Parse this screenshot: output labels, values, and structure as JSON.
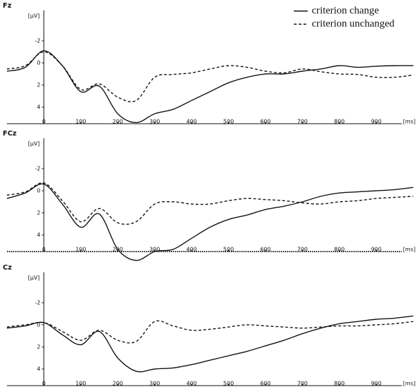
{
  "chart_data": [
    {
      "type": "line",
      "title": "Fz",
      "y_label": "[µV]",
      "x_label": "[ms]",
      "x": [
        -100,
        -50,
        0,
        50,
        100,
        150,
        200,
        250,
        300,
        350,
        400,
        450,
        500,
        550,
        600,
        650,
        700,
        750,
        800,
        850,
        900,
        950,
        1000
      ],
      "xlim": [
        -100,
        1010
      ],
      "xticks": [
        0,
        100,
        200,
        300,
        400,
        500,
        600,
        700,
        800,
        900
      ],
      "ylim": [
        -4.5,
        5.5
      ],
      "yticks": [
        -2,
        0,
        2,
        4
      ],
      "y_inverted": true,
      "legend": "upper right",
      "series": [
        {
          "name": "criterion change",
          "color": "#111111",
          "dash": false,
          "values": [
            0.75,
            0.4,
            -1.1,
            0.25,
            2.6,
            2.1,
            4.6,
            5.4,
            4.6,
            4.2,
            3.4,
            2.6,
            1.8,
            1.3,
            1.0,
            1.0,
            0.75,
            0.55,
            0.25,
            0.4,
            0.3,
            0.25,
            0.25
          ]
        },
        {
          "name": "criterion unchanged",
          "color": "#111111",
          "dash": true,
          "values": [
            0.55,
            0.25,
            -1,
            0.25,
            2.4,
            1.9,
            3.1,
            3.4,
            1.3,
            1.05,
            0.9,
            0.55,
            0.25,
            0.4,
            0.75,
            0.9,
            0.55,
            0.8,
            1.0,
            1.05,
            1.3,
            1.3,
            1.1
          ]
        }
      ]
    },
    {
      "type": "line",
      "title": "FCz",
      "y_label": "[µV]",
      "x_label": "[ms]",
      "x": [
        -100,
        -50,
        0,
        50,
        100,
        150,
        200,
        250,
        300,
        350,
        400,
        450,
        500,
        550,
        600,
        650,
        700,
        750,
        800,
        850,
        900,
        950,
        1000
      ],
      "xlim": [
        -100,
        1010
      ],
      "xticks": [
        0,
        100,
        200,
        300,
        400,
        500,
        600,
        700,
        800,
        900
      ],
      "ylim": [
        -4.5,
        5.5
      ],
      "yticks": [
        -2,
        0,
        2,
        4
      ],
      "y_inverted": true,
      "series": [
        {
          "color": "#111111",
          "dash": false,
          "values": [
            0.7,
            0.2,
            -0.6,
            1.2,
            3.3,
            2.1,
            5.3,
            6.3,
            5.5,
            5.3,
            4.3,
            3.3,
            2.6,
            2.2,
            1.7,
            1.4,
            1.0,
            0.5,
            0.2,
            0.1,
            0.0,
            -0.1,
            -0.3
          ]
        },
        {
          "color": "#111111",
          "dash": true,
          "values": [
            0.4,
            0.1,
            -0.7,
            0.9,
            2.8,
            1.6,
            2.9,
            2.8,
            1.2,
            1.0,
            1.2,
            1.2,
            0.9,
            0.7,
            0.8,
            0.9,
            1.1,
            1.2,
            1.0,
            0.9,
            0.7,
            0.6,
            0.5
          ]
        }
      ]
    },
    {
      "type": "line",
      "title": "Cz",
      "y_label": "[µV]",
      "x_label": "[ms]",
      "x": [
        -100,
        -50,
        0,
        50,
        100,
        150,
        200,
        250,
        300,
        350,
        400,
        450,
        500,
        550,
        600,
        650,
        700,
        750,
        800,
        850,
        900,
        950,
        1000
      ],
      "xlim": [
        -100,
        1010
      ],
      "xticks": [
        0,
        100,
        200,
        300,
        400,
        500,
        600,
        700,
        800,
        900
      ],
      "ylim": [
        -4.5,
        5.5
      ],
      "yticks": [
        -2,
        0,
        2,
        4
      ],
      "y_inverted": true,
      "series": [
        {
          "color": "#111111",
          "dash": false,
          "values": [
            0.3,
            0.1,
            -0.2,
            0.9,
            1.8,
            0.6,
            3.0,
            4.2,
            4.0,
            3.9,
            3.6,
            3.2,
            2.8,
            2.4,
            1.9,
            1.4,
            0.8,
            0.3,
            -0.1,
            -0.3,
            -0.5,
            -0.6,
            -0.8
          ]
        },
        {
          "color": "#111111",
          "dash": true,
          "values": [
            0.2,
            0.0,
            -0.2,
            0.6,
            1.4,
            0.5,
            1.4,
            1.5,
            -0.3,
            0.1,
            0.5,
            0.4,
            0.2,
            0.0,
            0.1,
            0.2,
            0.3,
            0.2,
            0.1,
            0.1,
            0.0,
            -0.1,
            -0.3
          ]
        }
      ]
    }
  ]
}
